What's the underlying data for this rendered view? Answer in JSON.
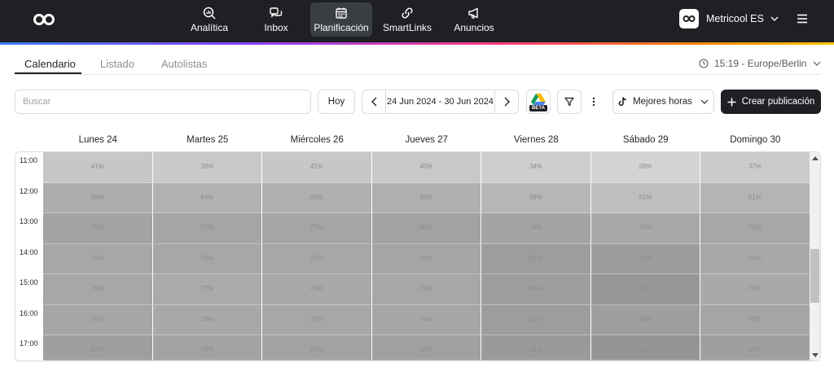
{
  "nav": {
    "items": [
      {
        "id": "analitica",
        "label": "Analítica",
        "icon": "analytics-icon"
      },
      {
        "id": "inbox",
        "label": "Inbox",
        "icon": "chat-bubbles-icon"
      },
      {
        "id": "planificacion",
        "label": "Planificación",
        "icon": "calendar-icon",
        "active": true
      },
      {
        "id": "smartlinks",
        "label": "SmartLinks",
        "icon": "link-icon"
      },
      {
        "id": "anuncios",
        "label": "Anuncios",
        "icon": "megaphone-icon"
      }
    ],
    "account_name": "Metricool ES",
    "accent_gradient": [
      "#3d7eff",
      "#8e44ff",
      "#ff3d7f",
      "#ff8a00",
      "#ffc400"
    ]
  },
  "tabs": [
    {
      "label": "Calendario",
      "active": true
    },
    {
      "label": "Listado",
      "active": false
    },
    {
      "label": "Autolistas",
      "active": false
    }
  ],
  "timezone": "15:19 - Europe/Berlin",
  "toolbar": {
    "search_placeholder": "Buscar",
    "today_label": "Hoy",
    "date_range": "24 Jun 2024 - 30 Jun 2024",
    "beta_label": "BETA",
    "best_hours_label": "Mejores horas",
    "create_label": "Crear publicación"
  },
  "calendar": {
    "days": [
      "Lunes 24",
      "Martes 25",
      "Miércoles 26",
      "Jueves 27",
      "Viernes 28",
      "Sábado 29",
      "Domingo 30"
    ],
    "hours": [
      "11:00",
      "12:00",
      "13:00",
      "14:00",
      "15:00",
      "16:00",
      "17:00"
    ],
    "values": [
      [
        41,
        39,
        41,
        40,
        34,
        28,
        37
      ],
      [
        68,
        64,
        66,
        66,
        59,
        51,
        61
      ],
      [
        79,
        77,
        77,
        80,
        78,
        74,
        75
      ],
      [
        75,
        75,
        75,
        77,
        85,
        86,
        74
      ],
      [
        75,
        72,
        73,
        75,
        84,
        92,
        73
      ],
      [
        76,
        74,
        75,
        76,
        85,
        83,
        77
      ],
      [
        83,
        79,
        80,
        82,
        88,
        94,
        83
      ]
    ]
  }
}
